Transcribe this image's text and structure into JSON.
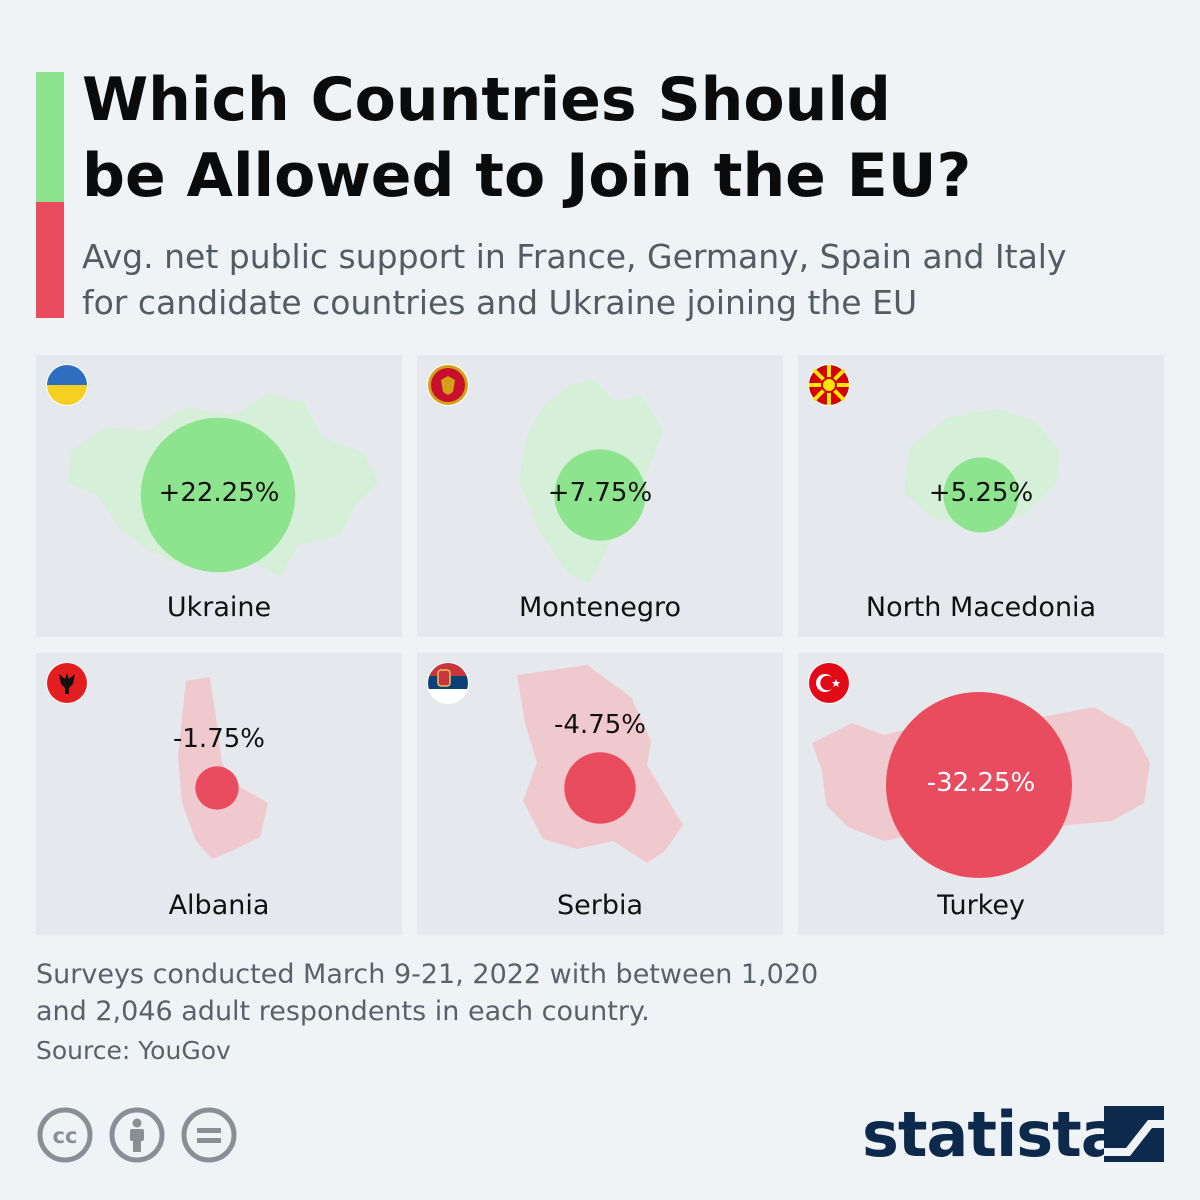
{
  "header": {
    "title": "Which Countries Should\nbe Allowed to Join the EU?",
    "subtitle": "Avg. net public support in France, Germany, Spain and Italy\nfor candidate countries and Ukraine joining the EU"
  },
  "colors": {
    "positive": "#8de38e",
    "positive_map": "#d5efd9",
    "negative": "#ea4c5f",
    "negative_map": "#f0c9cf",
    "panel": "#e5e9ee"
  },
  "chart_data": {
    "type": "bubble",
    "title": "Which Countries Should be Allowed to Join the EU?",
    "subtitle": "Avg. net public support in France, Germany, Spain and Italy for candidate countries and Ukraine joining the EU",
    "unit": "%",
    "categories": [
      "Ukraine",
      "Montenegro",
      "North Macedonia",
      "Albania",
      "Serbia",
      "Turkey"
    ],
    "values": [
      22.25,
      7.75,
      5.25,
      -1.75,
      -4.75,
      -32.25
    ],
    "labels": [
      "+22.25%",
      "+7.75%",
      "+5.25%",
      "-1.75%",
      "-4.75%",
      "-32.25%"
    ],
    "flags": [
      "ukraine-flag-icon",
      "montenegro-flag-icon",
      "north-macedonia-flag-icon",
      "albania-flag-icon",
      "serbia-flag-icon",
      "turkey-flag-icon"
    ]
  },
  "footer": {
    "note": "Surveys conducted March 9-21, 2022 with between 1,020\nand 2,046 adult respondents in each country.",
    "source": "Source: YouGov",
    "brand": "statista"
  }
}
